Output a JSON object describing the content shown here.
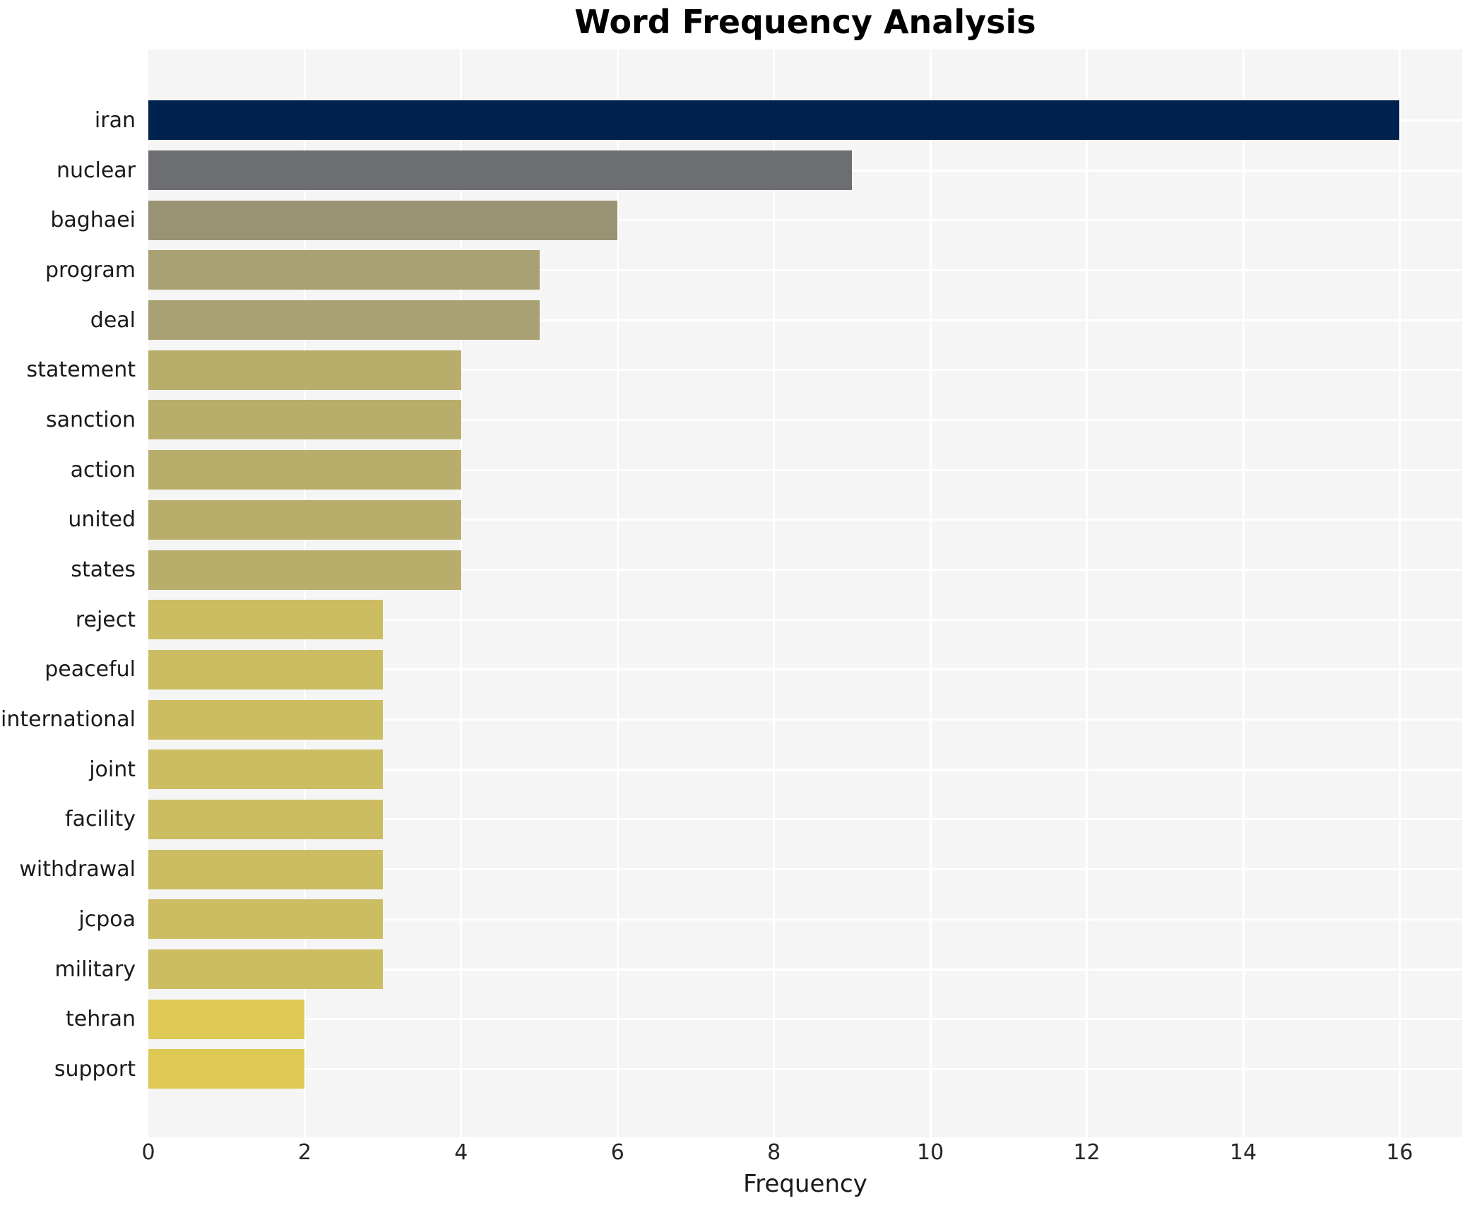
{
  "title": "Word Frequency Analysis",
  "xlabel": "Frequency",
  "chart_data": {
    "type": "bar",
    "orientation": "horizontal",
    "title": "Word Frequency Analysis",
    "xlabel": "Frequency",
    "ylabel": "",
    "categories": [
      "iran",
      "nuclear",
      "baghaei",
      "program",
      "deal",
      "statement",
      "sanction",
      "action",
      "united",
      "states",
      "reject",
      "peaceful",
      "international",
      "joint",
      "facility",
      "withdrawal",
      "jcpoa",
      "military",
      "tehran",
      "support"
    ],
    "values": [
      16,
      9,
      6,
      5,
      5,
      4,
      4,
      4,
      4,
      4,
      3,
      3,
      3,
      3,
      3,
      3,
      3,
      3,
      2,
      2
    ],
    "bar_colors": [
      "#00224e",
      "#6d6e71",
      "#9a9274",
      "#a9a073",
      "#a9a073",
      "#b9ad6c",
      "#b9ad6c",
      "#b9ad6c",
      "#b9ad6c",
      "#b9ad6c",
      "#ccbc62",
      "#ccbc62",
      "#ccbc62",
      "#ccbc62",
      "#ccbc62",
      "#ccbc62",
      "#ccbc62",
      "#ccbc62",
      "#ddc954",
      "#ddc954"
    ],
    "xticks": [
      0,
      2,
      4,
      6,
      8,
      10,
      12,
      14,
      16
    ],
    "xlim": [
      0,
      16.8
    ],
    "grid": true,
    "legend": false,
    "plot_background": "#f5f5f6",
    "grid_color": "#ffffff",
    "tick_color": "#262626",
    "label_color": "#1a1a1a",
    "title_color": "#000000"
  }
}
